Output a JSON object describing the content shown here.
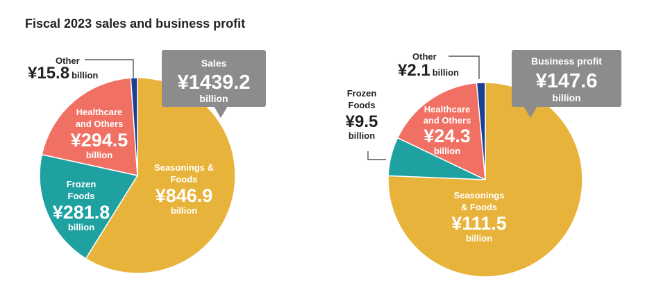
{
  "title": "Fiscal 2023 sales and business profit",
  "colors": {
    "seasonings": "#E8B33A",
    "frozen": "#1FA1A1",
    "healthcare": "#F07063",
    "other": "#1C3F94",
    "callout": "#8C8C8C",
    "text_dark": "#222222",
    "text_light": "#ffffff"
  },
  "chart_data": [
    {
      "type": "pie",
      "title": "",
      "unit": "billion",
      "callout": {
        "heading": "Sales",
        "value": "¥1439.2",
        "unit": "billion"
      },
      "slices": [
        {
          "key": "seasonings",
          "label_lines": [
            "Seasonings &",
            "Foods"
          ],
          "value": 846.9,
          "value_text": "¥846.9",
          "unit": "billion"
        },
        {
          "key": "frozen",
          "label_lines": [
            "Frozen",
            "Foods"
          ],
          "value": 281.8,
          "value_text": "¥281.8",
          "unit": "billion"
        },
        {
          "key": "healthcare",
          "label_lines": [
            "Healthcare",
            "and Others"
          ],
          "value": 294.5,
          "value_text": "¥294.5",
          "unit": "billion"
        },
        {
          "key": "other",
          "label_lines": [
            "Other"
          ],
          "value": 15.8,
          "value_text": "¥15.8",
          "unit": "billion"
        }
      ]
    },
    {
      "type": "pie",
      "title": "",
      "unit": "billion",
      "callout": {
        "heading": "Business profit",
        "value": "¥147.6",
        "unit": "billion"
      },
      "slices": [
        {
          "key": "seasonings",
          "label_lines": [
            "Seasonings",
            "& Foods"
          ],
          "value": 111.5,
          "value_text": "¥111.5",
          "unit": "billion"
        },
        {
          "key": "frozen",
          "label_lines": [
            "Frozen",
            "Foods"
          ],
          "value": 9.5,
          "value_text": "¥9.5",
          "unit": "billion"
        },
        {
          "key": "healthcare",
          "label_lines": [
            "Healthcare",
            "and Others"
          ],
          "value": 24.3,
          "value_text": "¥24.3",
          "unit": "billion"
        },
        {
          "key": "other",
          "label_lines": [
            "Other"
          ],
          "value": 2.1,
          "value_text": "¥2.1",
          "unit": "billion"
        }
      ]
    }
  ]
}
